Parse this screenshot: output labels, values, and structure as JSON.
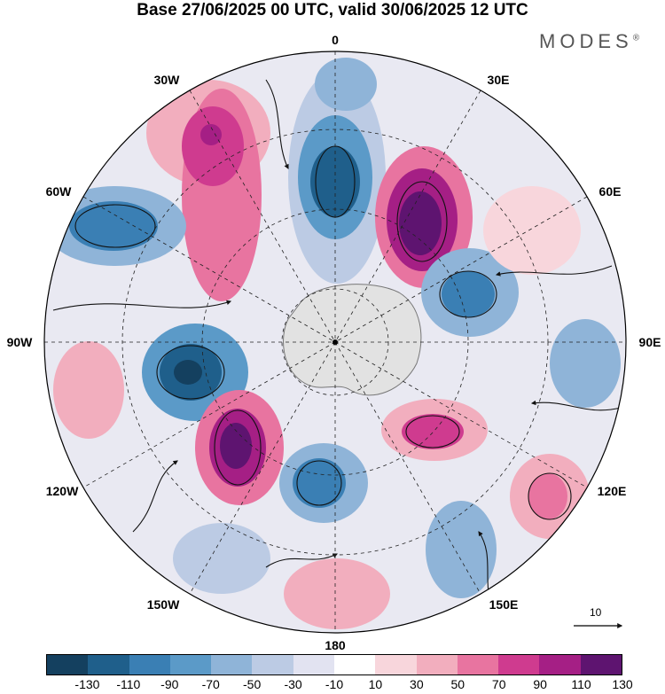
{
  "title": "Base 27/06/2025 00 UTC, valid 30/06/2025 12 UTC",
  "brand": "MODES",
  "brand_mark": "®",
  "longitude_labels": {
    "top": "0",
    "ne": "30E",
    "e60": "60E",
    "e90": "90E",
    "e120": "120E",
    "e150": "150E",
    "bottom": "180",
    "w150": "150W",
    "w120": "120W",
    "w90": "90W",
    "w60": "60W",
    "w30": "30W"
  },
  "reference_vector": {
    "label": "10"
  },
  "colorbar": {
    "colors": [
      "#14405f",
      "#1f5f8b",
      "#3a7fb4",
      "#5b9ac8",
      "#8fb4d8",
      "#bccbe4",
      "#e2e3f1",
      "#ffffff",
      "#f8d6dc",
      "#f2aebe",
      "#e874a0",
      "#cf3b8f",
      "#a51f85",
      "#5e1470"
    ],
    "tick_labels": [
      "-130",
      "-110",
      "-90",
      "-70",
      "-50",
      "-30",
      "-10",
      "10",
      "30",
      "50",
      "70",
      "90",
      "110",
      "130"
    ]
  }
}
